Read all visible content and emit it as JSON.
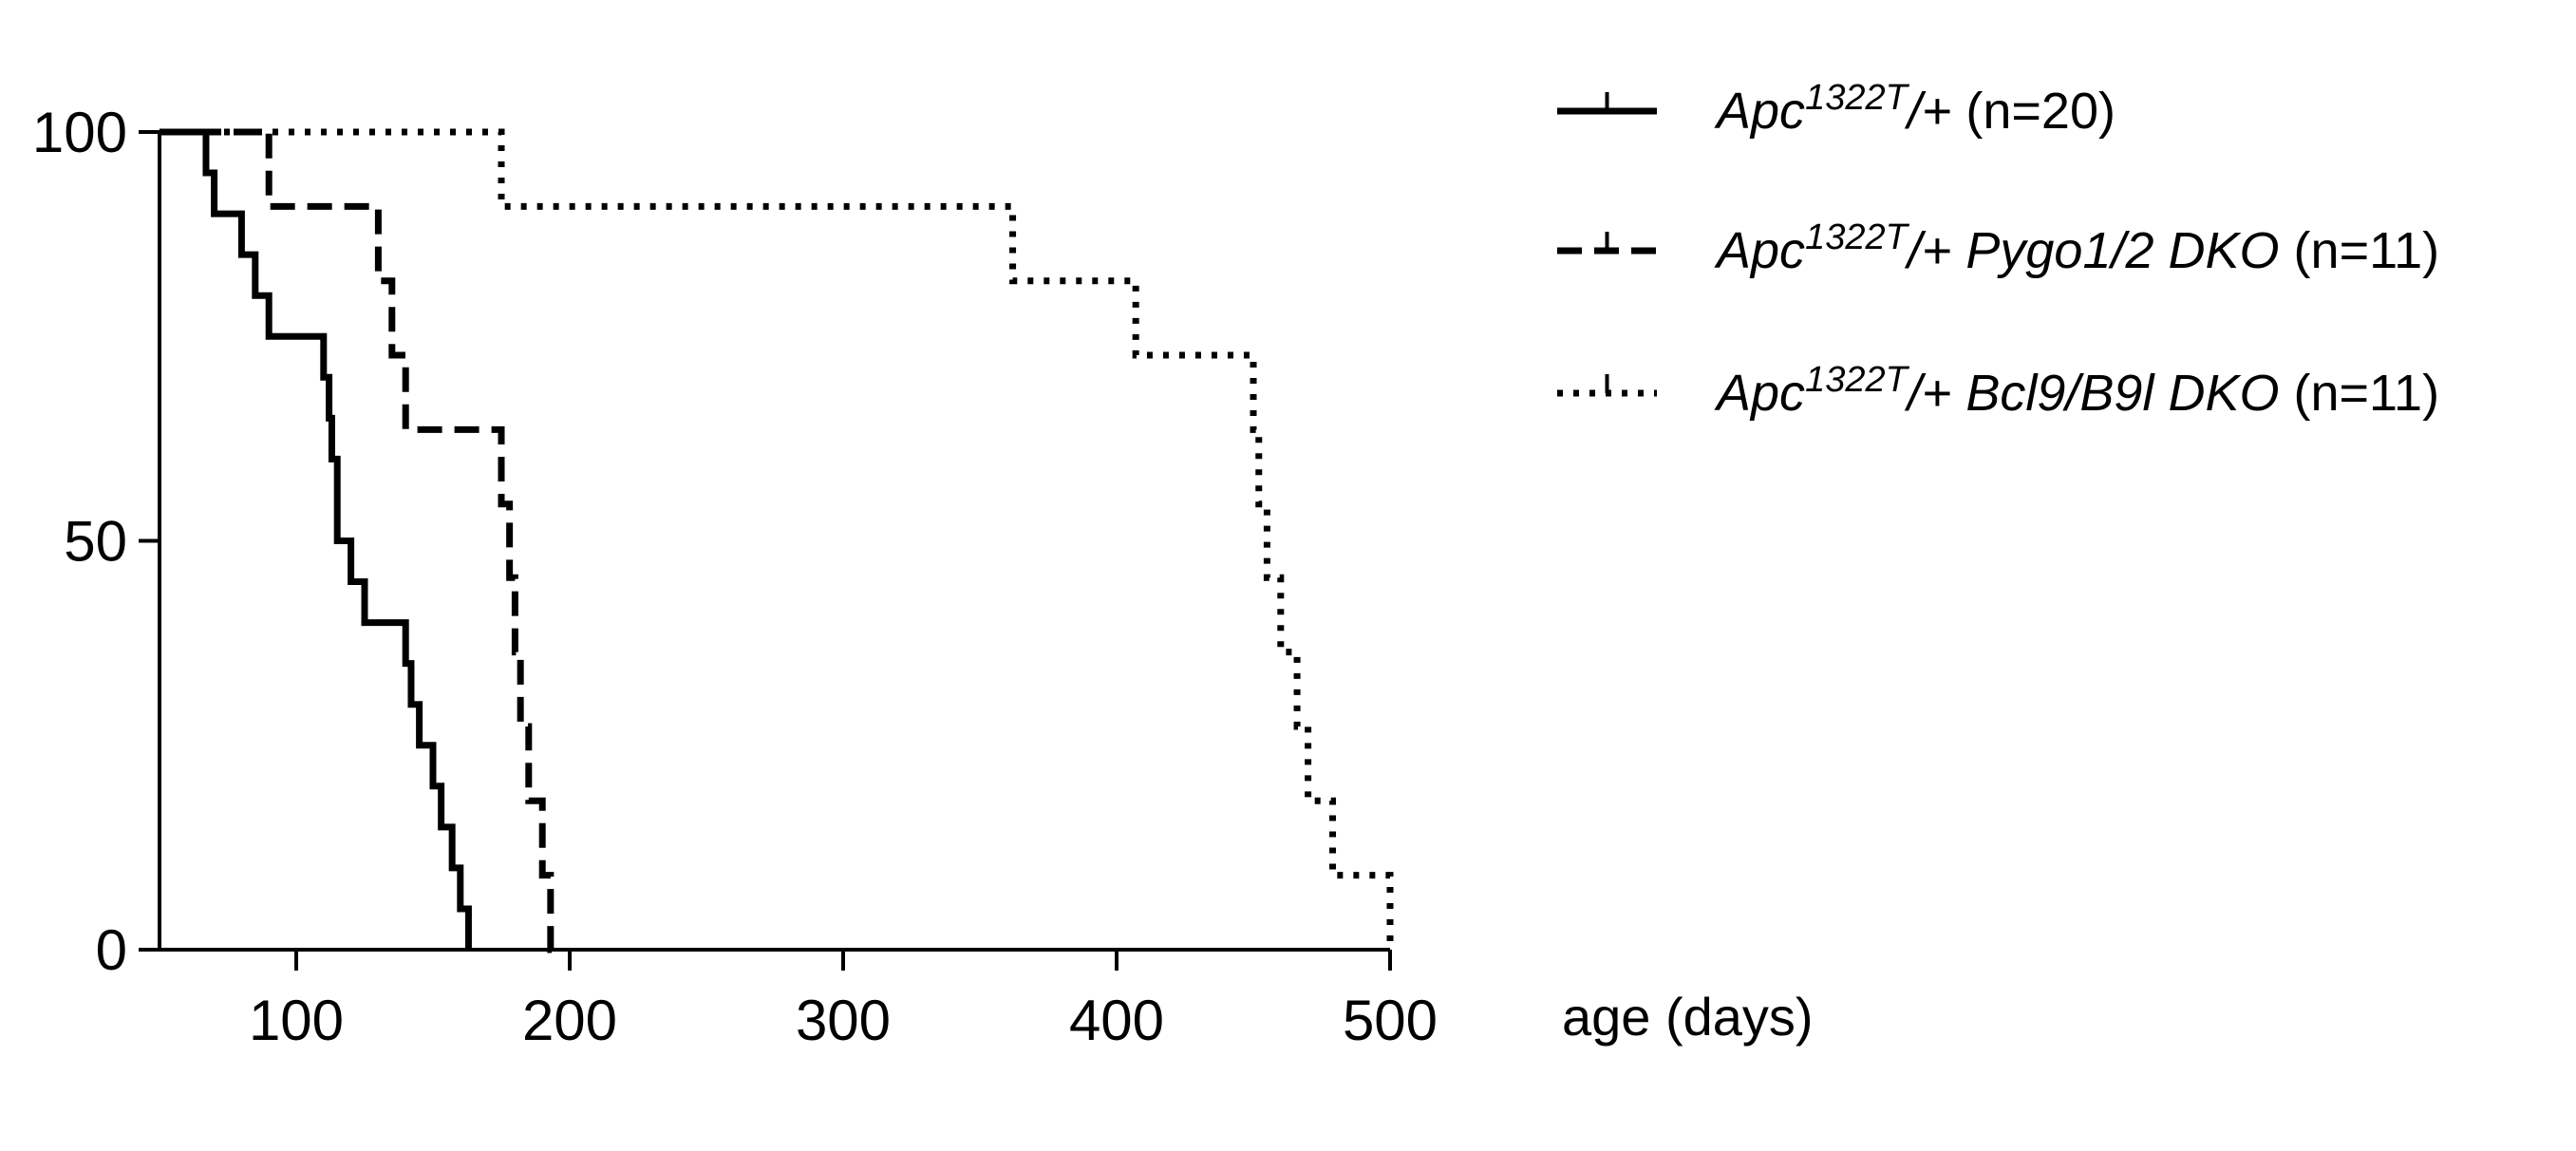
{
  "chart_data": {
    "type": "line",
    "xlabel": "age (days)",
    "ylabel": "",
    "xlim": [
      50,
      500
    ],
    "ylim": [
      0,
      100
    ],
    "x_ticks": [
      100,
      200,
      300,
      400,
      500
    ],
    "y_ticks": [
      0,
      50,
      100
    ],
    "legend_placement": "top-right",
    "series": [
      {
        "style": "solid",
        "legend_sup": "1322T",
        "legend_tail": "(n=20)",
        "legend_prefix": "Apc",
        "legend_slash": "/+",
        "legend_italic": "",
        "color": "#000000",
        "x": [
          50,
          67,
          70,
          80,
          85,
          90,
          110,
          112,
          113,
          115,
          120,
          125,
          140,
          142,
          145,
          150,
          153,
          157,
          160,
          163
        ],
        "y": [
          100,
          95,
          90,
          85,
          80,
          75,
          70,
          65,
          60,
          50,
          45,
          40,
          35,
          30,
          25,
          20,
          15,
          10,
          5,
          0
        ]
      },
      {
        "style": "dashed",
        "legend_sup": "1322T",
        "legend_tail": "(n=11)",
        "legend_prefix": "Apc",
        "legend_slash": "/+",
        "legend_italic": "Pygo1/2 DKO",
        "color": "#000000",
        "x": [
          50,
          90,
          130,
          135,
          140,
          175,
          178,
          180,
          182,
          185,
          190,
          193,
          196
        ],
        "y": [
          100,
          90.9,
          81.8,
          72.7,
          63.6,
          54.5,
          45.5,
          36.4,
          27.3,
          18.2,
          9.1,
          0,
          0
        ],
        "notes": null
      },
      {
        "style": "dotted",
        "legend_sup": "1322T",
        "legend_tail": "(n=11)",
        "legend_prefix": "Apc",
        "legend_slash": "/+",
        "legend_italic": "Bcl9/B9l DKO",
        "color": "#000000",
        "x": [
          50,
          175,
          362,
          407,
          450,
          452,
          455,
          460,
          466,
          470,
          479,
          500
        ],
        "y": [
          100,
          90.9,
          81.8,
          72.7,
          63.6,
          54.5,
          45.5,
          36.4,
          27.3,
          18.2,
          9.1,
          0
        ]
      }
    ]
  }
}
